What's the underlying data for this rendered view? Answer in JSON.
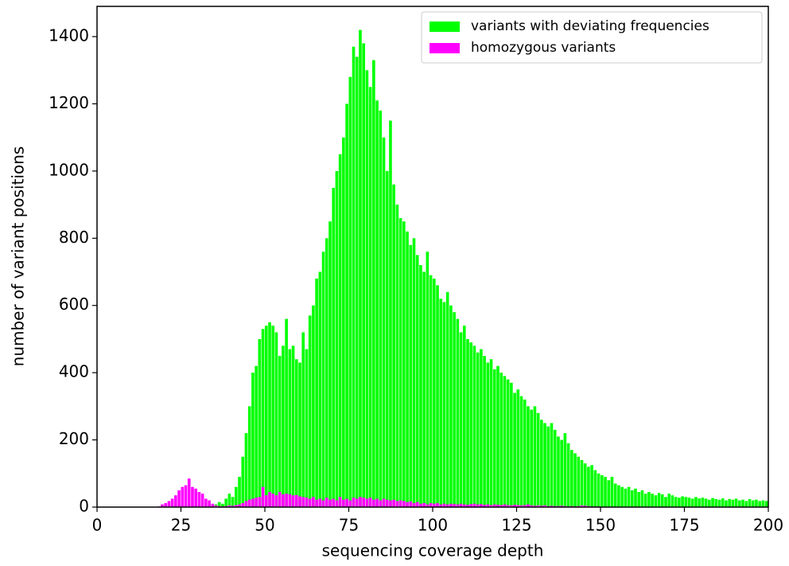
{
  "chart_data": {
    "type": "histogram",
    "xlabel": "sequencing coverage depth",
    "ylabel": "number of variant positions",
    "bins": [
      0,
      1,
      2,
      3,
      4,
      5,
      6,
      7,
      8,
      9,
      10,
      11,
      12,
      13,
      14,
      15,
      16,
      17,
      18,
      19,
      20,
      21,
      22,
      23,
      24,
      25,
      26,
      27,
      28,
      29,
      30,
      31,
      32,
      33,
      34,
      35,
      36,
      37,
      38,
      39,
      40,
      41,
      42,
      43,
      44,
      45,
      46,
      47,
      48,
      49,
      50,
      51,
      52,
      53,
      54,
      55,
      56,
      57,
      58,
      59,
      60,
      61,
      62,
      63,
      64,
      65,
      66,
      67,
      68,
      69,
      70,
      71,
      72,
      73,
      74,
      75,
      76,
      77,
      78,
      79,
      80,
      81,
      82,
      83,
      84,
      85,
      86,
      87,
      88,
      89,
      90,
      91,
      92,
      93,
      94,
      95,
      96,
      97,
      98,
      99,
      100,
      101,
      102,
      103,
      104,
      105,
      106,
      107,
      108,
      109,
      110,
      111,
      112,
      113,
      114,
      115,
      116,
      117,
      118,
      119,
      120,
      121,
      122,
      123,
      124,
      125,
      126,
      127,
      128,
      129,
      130,
      131,
      132,
      133,
      134,
      135,
      136,
      137,
      138,
      139,
      140,
      141,
      142,
      143,
      144,
      145,
      146,
      147,
      148,
      149,
      150,
      151,
      152,
      153,
      154,
      155,
      156,
      157,
      158,
      159,
      160,
      161,
      162,
      163,
      164,
      165,
      166,
      167,
      168,
      169,
      170,
      171,
      172,
      173,
      174,
      175,
      176,
      177,
      178,
      179,
      180,
      181,
      182,
      183,
      184,
      185,
      186,
      187,
      188,
      189,
      190,
      191,
      192,
      193,
      194,
      195,
      196,
      197,
      198,
      199,
      200
    ],
    "series": [
      {
        "name": "variants with deviating frequencies",
        "color": "#00ff00",
        "values": [
          0,
          0,
          0,
          0,
          0,
          0,
          0,
          0,
          0,
          0,
          0,
          0,
          0,
          0,
          0,
          0,
          0,
          0,
          0,
          0,
          0,
          0,
          0,
          0,
          0,
          0,
          0,
          0,
          0,
          0,
          0,
          0,
          0,
          0,
          3,
          8,
          15,
          10,
          25,
          40,
          30,
          60,
          90,
          150,
          220,
          300,
          400,
          420,
          500,
          530,
          540,
          550,
          540,
          520,
          450,
          480,
          560,
          470,
          480,
          440,
          430,
          520,
          470,
          570,
          600,
          680,
          700,
          760,
          800,
          850,
          950,
          1000,
          1050,
          1100,
          1200,
          1280,
          1370,
          1340,
          1420,
          1380,
          1300,
          1250,
          1330,
          1210,
          1180,
          1100,
          1000,
          1150,
          960,
          900,
          860,
          850,
          820,
          780,
          800,
          750,
          720,
          700,
          760,
          690,
          680,
          660,
          620,
          610,
          640,
          600,
          580,
          560,
          520,
          540,
          500,
          490,
          480,
          460,
          470,
          450,
          430,
          440,
          410,
          420,
          400,
          390,
          380,
          370,
          340,
          350,
          330,
          320,
          300,
          290,
          300,
          280,
          260,
          250,
          240,
          250,
          230,
          210,
          200,
          220,
          190,
          170,
          160,
          150,
          140,
          130,
          120,
          125,
          110,
          100,
          95,
          90,
          80,
          90,
          70,
          65,
          60,
          55,
          60,
          50,
          55,
          45,
          50,
          40,
          45,
          40,
          35,
          42,
          38,
          30,
          40,
          35,
          30,
          28,
          32,
          30,
          28,
          25,
          30,
          26,
          28,
          25,
          22,
          27,
          24,
          22,
          26,
          20,
          24,
          22,
          25,
          20,
          22,
          18,
          24,
          20,
          22,
          18,
          20,
          18
        ]
      },
      {
        "name": "homozygous variants",
        "color": "#ff00ff",
        "values": [
          0,
          0,
          0,
          0,
          0,
          0,
          0,
          0,
          0,
          0,
          0,
          0,
          0,
          0,
          0,
          0,
          0,
          0,
          2,
          8,
          12,
          18,
          25,
          35,
          50,
          60,
          65,
          85,
          60,
          55,
          45,
          40,
          25,
          20,
          10,
          5,
          3,
          2,
          3,
          5,
          4,
          6,
          8,
          12,
          18,
          22,
          25,
          28,
          30,
          60,
          35,
          45,
          40,
          35,
          45,
          38,
          40,
          38,
          35,
          36,
          32,
          30,
          28,
          25,
          30,
          22,
          25,
          20,
          28,
          22,
          25,
          20,
          30,
          22,
          25,
          20,
          28,
          25,
          30,
          28,
          25,
          28,
          22,
          25,
          20,
          25,
          22,
          20,
          22,
          18,
          20,
          18,
          15,
          17,
          12,
          15,
          10,
          12,
          8,
          12,
          10,
          12,
          8,
          10,
          8,
          10,
          9,
          8,
          10,
          8,
          7,
          9,
          10,
          8,
          9,
          7,
          8,
          6,
          8,
          7,
          6,
          8,
          6,
          5,
          7,
          6,
          5,
          6,
          8,
          5,
          4,
          5,
          4,
          5,
          3,
          4,
          3,
          3,
          4,
          3,
          2,
          3,
          2,
          3,
          5,
          4,
          3,
          2,
          2,
          2,
          1,
          0,
          0,
          0,
          0,
          0,
          0,
          0,
          0,
          0,
          0,
          0,
          0,
          0,
          0,
          0,
          0,
          0,
          0,
          0,
          0,
          0,
          0,
          0,
          0,
          0,
          0,
          0,
          0,
          0,
          0,
          0,
          0,
          0,
          0,
          0,
          0,
          0,
          0,
          0,
          0,
          0,
          0,
          0,
          0,
          0,
          0,
          0,
          0,
          0
        ]
      }
    ],
    "xlim": [
      0,
      200
    ],
    "xticks": [
      0,
      25,
      50,
      75,
      100,
      125,
      150,
      175,
      200
    ],
    "ylim": [
      0,
      1490
    ],
    "yticks": [
      0,
      200,
      400,
      600,
      800,
      1000,
      1200,
      1400
    ],
    "legend": "upper right"
  }
}
